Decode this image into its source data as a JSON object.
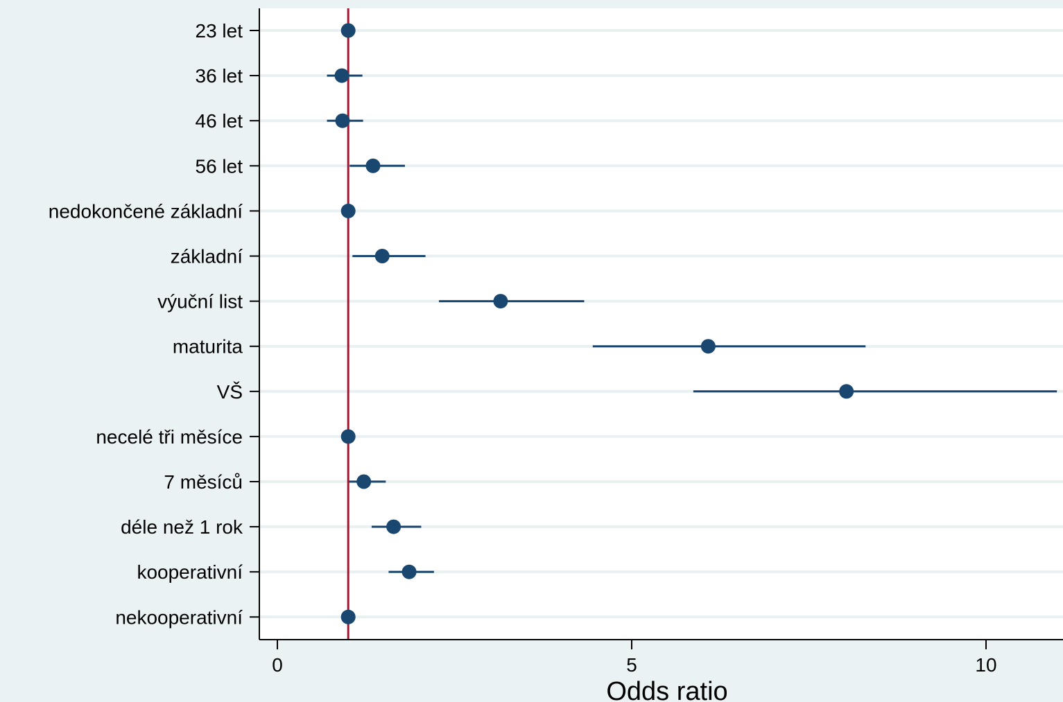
{
  "chart_data": {
    "type": "scatter",
    "subtype": "forest-plot",
    "title": "",
    "xlabel": "Odds ratio",
    "ylabel": "",
    "xlim": [
      -0.25,
      11.0
    ],
    "xticks": [
      0,
      5,
      10
    ],
    "xtick_labels": [
      "0",
      "5",
      "10"
    ],
    "reference_line": 1,
    "grid": true,
    "categories": [
      "23 let",
      "36 let",
      "46 let",
      "56 let",
      "nedokončené základní",
      "základní",
      "výuční list",
      "maturita",
      "VŠ",
      "necelé tři měsíce",
      "7 měsíců",
      "déle než 1 rok",
      "kooperativní",
      "nekooperativní"
    ],
    "series": [
      {
        "values": [
          1.0,
          0.91,
          0.92,
          1.35,
          1.0,
          1.48,
          3.15,
          6.08,
          8.03,
          1.0,
          1.22,
          1.64,
          1.86,
          1.0
        ],
        "ci_low": [
          1.0,
          0.7,
          0.7,
          1.02,
          1.0,
          1.06,
          2.28,
          4.45,
          5.87,
          1.0,
          1.0,
          1.33,
          1.57,
          1.0
        ],
        "ci_high": [
          1.0,
          1.2,
          1.21,
          1.8,
          1.0,
          2.09,
          4.33,
          8.3,
          11.0,
          1.0,
          1.53,
          2.03,
          2.21,
          1.0
        ]
      }
    ],
    "colors": {
      "background": "#eaf2f3",
      "plot_background": "#ffffff",
      "gridline": "#e9f0f2",
      "marker": "#1a476f",
      "reference_line": "#b0102e",
      "axis": "#000000"
    }
  }
}
